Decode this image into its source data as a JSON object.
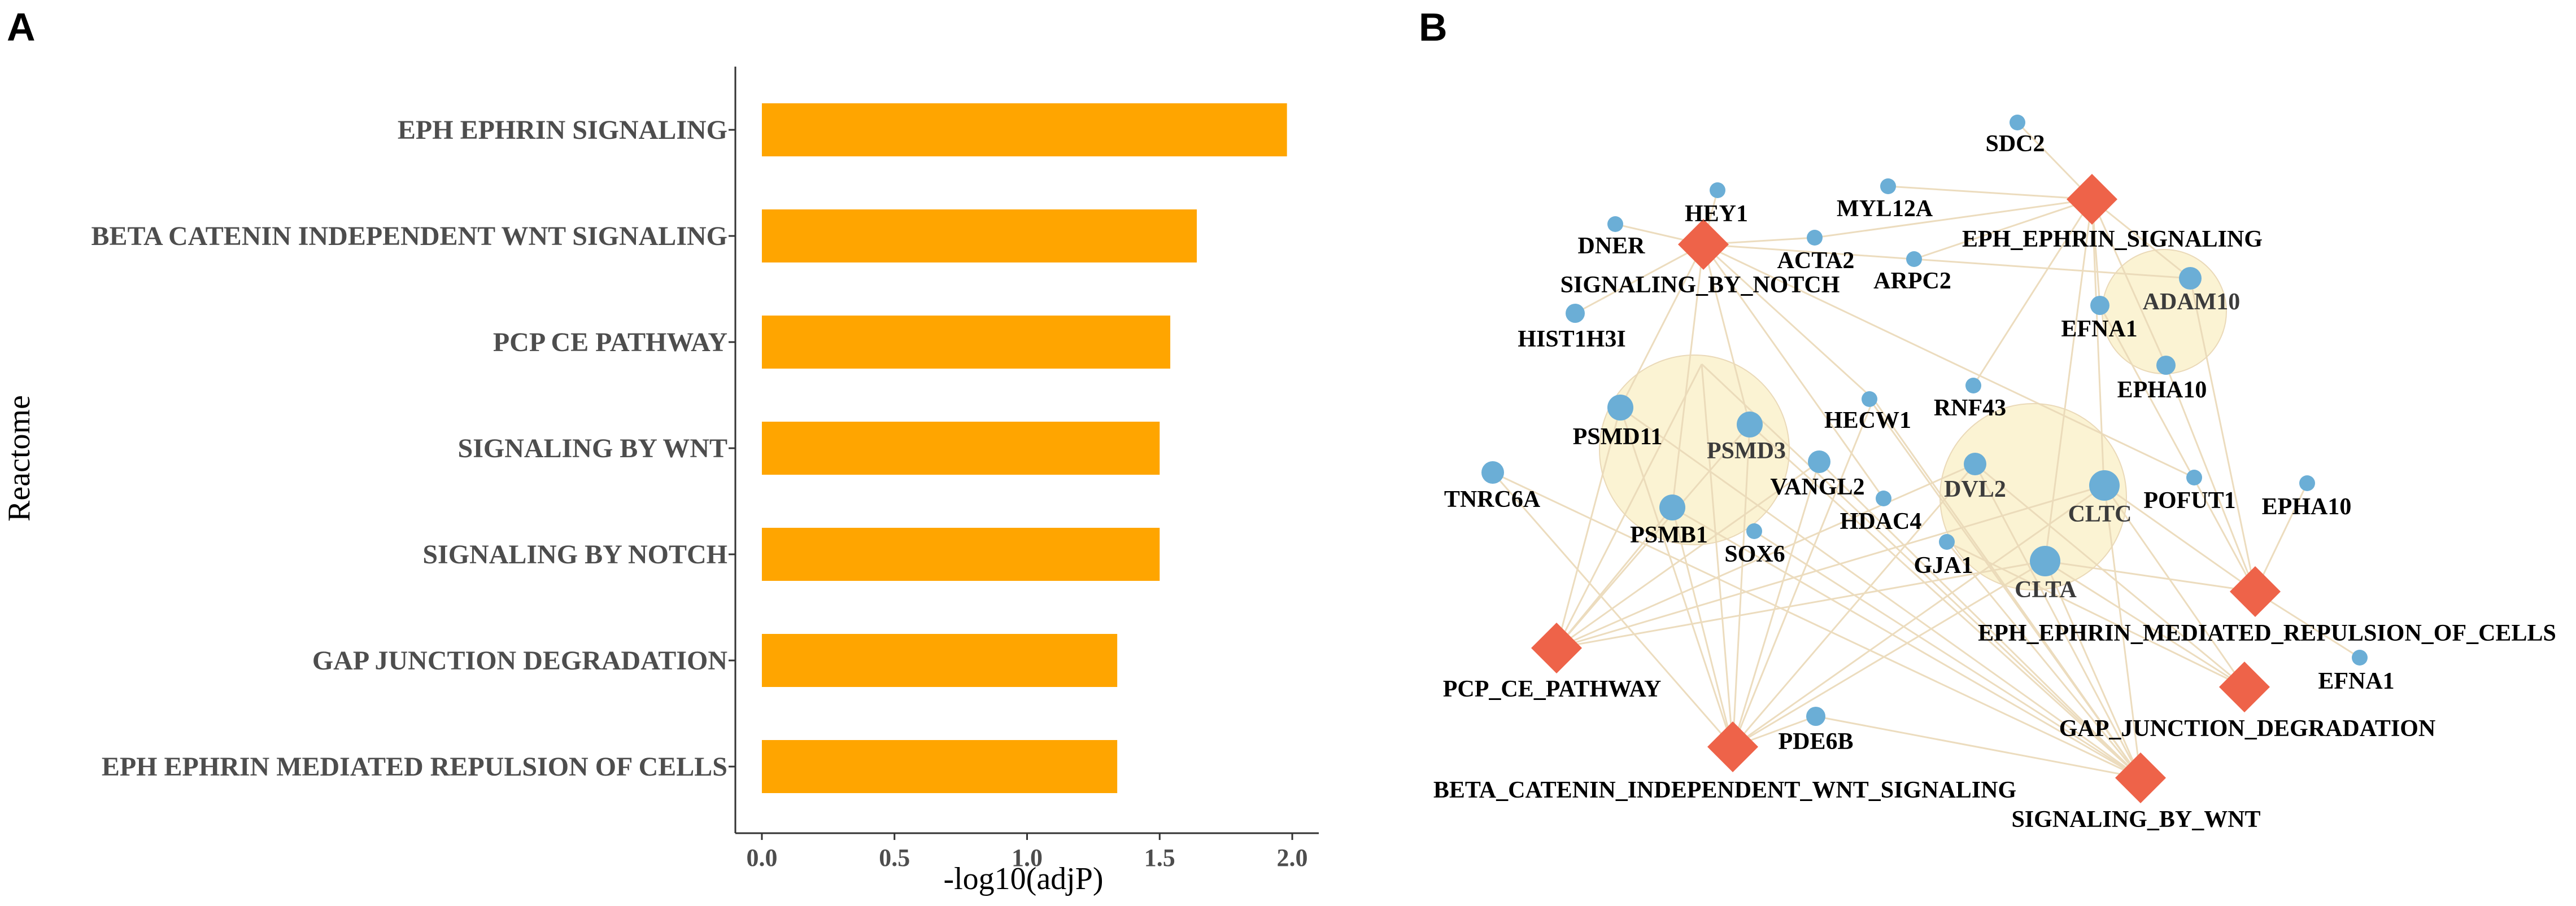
{
  "panel_labels": {
    "a": "A",
    "b": "B"
  },
  "colors": {
    "bar": "#FFA500",
    "pathway": "#EE6349",
    "gene": "#6BAED6",
    "edge": "#EAD9B8",
    "cluster": "#FBF3D3"
  },
  "chart_data": {
    "type": "bar",
    "orientation": "horizontal",
    "title": "",
    "xlabel": "-log10(adjP)",
    "ylabel": "Reactome",
    "xlim": [
      -0.1,
      2.1
    ],
    "xticks": [
      0.0,
      0.5,
      1.0,
      1.5,
      2.0
    ],
    "xtick_labels": [
      "0.0",
      "0.5",
      "1.0",
      "1.5",
      "2.0"
    ],
    "grid": false,
    "categories": [
      "EPH EPHRIN SIGNALING",
      "BETA CATENIN INDEPENDENT WNT SIGNALING",
      "PCP CE PATHWAY",
      "SIGNALING BY WNT",
      "SIGNALING BY NOTCH",
      "GAP JUNCTION DEGRADATION",
      "EPH EPHRIN MEDIATED REPULSION OF CELLS"
    ],
    "values": [
      1.98,
      1.64,
      1.54,
      1.5,
      1.5,
      1.34,
      1.34
    ]
  },
  "network": {
    "pathways": [
      "EPH_EPHRIN_SIGNALING",
      "SIGNALING_BY_NOTCH",
      "PCP_CE_PATHWAY",
      "BETA_CATENIN_INDEPENDENT_WNT_SIGNALING",
      "EPH_EPHRIN_MEDIATED_REPULSION_OF_CELLS",
      "GAP_JUNCTION_DEGRADATION",
      "SIGNALING_BY_WNT"
    ],
    "genes": [
      "SDC2",
      "HEY1",
      "MYL12A",
      "DNER",
      "ACTA2",
      "ARPC2",
      "HIST1H3I",
      "ADAM10",
      "EFNA1",
      "EPHA10",
      "RNF43",
      "HECW1",
      "PSMD11",
      "PSMD3",
      "VANGL2",
      "DVL2",
      "TNRC6A",
      "PSMB1",
      "HDAC4",
      "SOX6",
      "GJA1",
      "CLTC",
      "POFUT1",
      "EPHA10",
      "CLTA",
      "EFNA1",
      "PDE6B"
    ]
  }
}
